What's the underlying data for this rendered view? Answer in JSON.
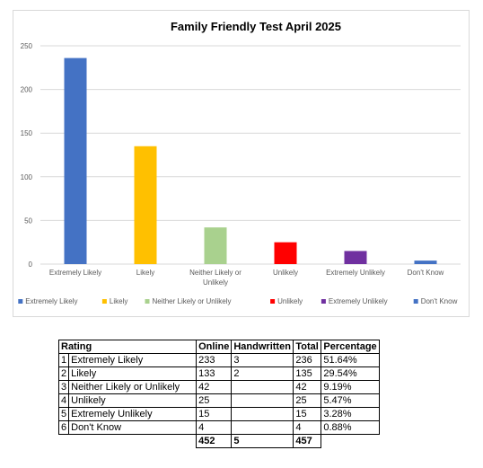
{
  "chart_data": {
    "type": "bar",
    "title": "Family Friendly Test April 2025",
    "categories": [
      "Extremely Likely",
      "Likely",
      "Neither Likely or Unlikely",
      "Unlikely",
      "Extremely Unlikely",
      "Don't Know"
    ],
    "category_lines": [
      [
        "Extremely Likely"
      ],
      [
        "Likely"
      ],
      [
        "Neither Likely or",
        "Unlikely"
      ],
      [
        "Unlikely"
      ],
      [
        "Extremely Unlikely"
      ],
      [
        "Don't Know"
      ]
    ],
    "values": [
      236,
      135,
      42,
      25,
      15,
      4
    ],
    "colors": [
      "#4472c4",
      "#ffc000",
      "#a9d18e",
      "#ff0000",
      "#7030a0",
      "#4472c4"
    ],
    "ylim": [
      0,
      250
    ],
    "yticks": [
      0,
      50,
      100,
      150,
      200,
      250
    ],
    "grid": true,
    "legend_position": "bottom",
    "xlabel": "",
    "ylabel": ""
  },
  "table": {
    "headers": [
      "Rating",
      "Online",
      "Handwritten",
      "Total",
      "Percentage"
    ],
    "rows": [
      {
        "index": "1",
        "rating": "Extremely Likely",
        "online": "233",
        "handwritten": "3",
        "total": "236",
        "percentage": "51.64%"
      },
      {
        "index": "2",
        "rating": "Likely",
        "online": "133",
        "handwritten": "2",
        "total": "135",
        "percentage": "29.54%"
      },
      {
        "index": "3",
        "rating": "Neither Likely or Unlikely",
        "online": "42",
        "handwritten": "",
        "total": "42",
        "percentage": "9.19%"
      },
      {
        "index": "4",
        "rating": "Unlikely",
        "online": "25",
        "handwritten": "",
        "total": "25",
        "percentage": "5.47%"
      },
      {
        "index": "5",
        "rating": "Extremely Unlikely",
        "online": "15",
        "handwritten": "",
        "total": "15",
        "percentage": "3.28%"
      },
      {
        "index": "6",
        "rating": "Don't Know",
        "online": "4",
        "handwritten": "",
        "total": "4",
        "percentage": "0.88%"
      }
    ],
    "totals": {
      "online": "452",
      "handwritten": "5",
      "total": "457"
    }
  }
}
